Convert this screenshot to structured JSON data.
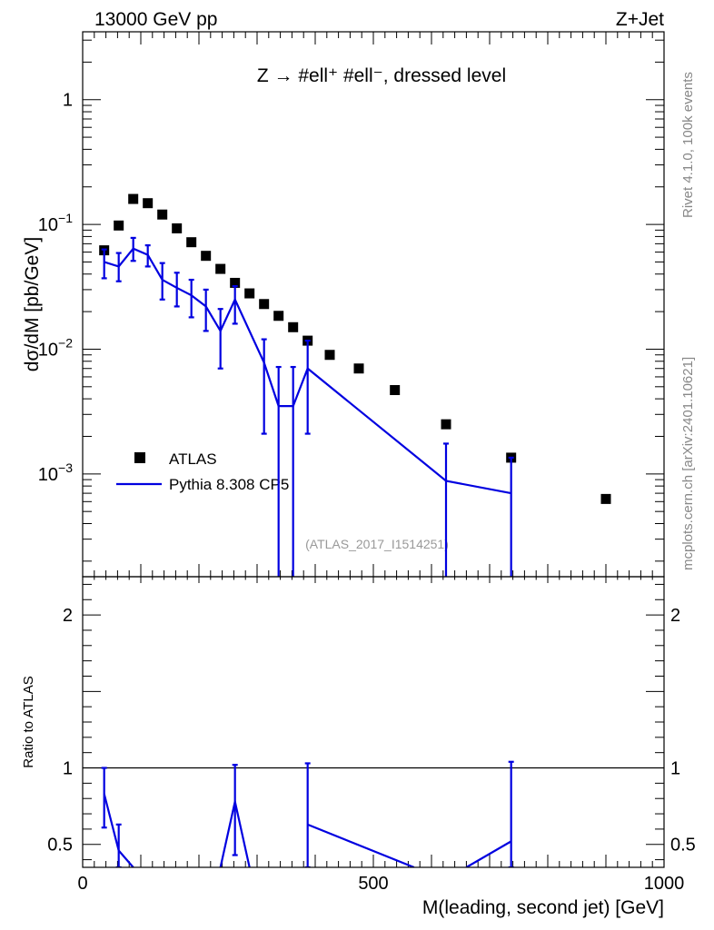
{
  "header": {
    "left_label": "13000 GeV pp",
    "right_label": "Z+Jet"
  },
  "side_labels": {
    "version": "Rivet 4.1.0,  100k events",
    "source": "mcplots.cern.ch [arXiv:2401.10621]"
  },
  "chart_data": {
    "type": "scatter",
    "title": "Z → #ell⁺ #ell⁻, dressed level",
    "analysis_id": "(ATLAS_2017_I1514251)",
    "xlabel": "M(leading, second jet) [GeV]",
    "ylabel": "dσ/dM [pb/GeV]",
    "ratio_ylabel": "Ratio to ATLAS",
    "xlim": [
      0,
      1000
    ],
    "ylim": [
      0.00015,
      3.5
    ],
    "yscale": "log",
    "ratio_ylim": [
      0.35,
      2.25
    ],
    "x_tick_labels": [
      "0",
      "500",
      "1000"
    ],
    "y_tick_labels": [
      {
        "value": 1,
        "mant": "1",
        "exp": ""
      },
      {
        "value": 0.1,
        "mant": "10",
        "exp": "−1"
      },
      {
        "value": 0.01,
        "mant": "10",
        "exp": "−2"
      },
      {
        "value": 0.001,
        "mant": "10",
        "exp": "−3"
      }
    ],
    "ratio_tick_labels": [
      {
        "value": 0.5,
        "label": "0.5"
      },
      {
        "value": 1,
        "label": "1"
      },
      {
        "value": 2,
        "label": "2"
      }
    ],
    "legend": {
      "position": "lower-left",
      "entries": [
        "ATLAS",
        "Pythia 8.308 CP5"
      ]
    },
    "series": [
      {
        "name": "ATLAS",
        "style": "markers",
        "color": "#000000",
        "x": [
          37,
          62,
          87,
          112,
          137,
          162,
          187,
          212,
          237,
          262,
          287,
          312,
          337,
          362,
          387,
          425,
          475,
          537,
          625,
          737,
          900
        ],
        "y": [
          0.062,
          0.098,
          0.16,
          0.148,
          0.12,
          0.093,
          0.072,
          0.056,
          0.044,
          0.034,
          0.028,
          0.023,
          0.0185,
          0.015,
          0.0117,
          0.009,
          0.007,
          0.0047,
          0.0025,
          0.00135,
          0.00063
        ]
      },
      {
        "name": "Pythia 8.308 CP5",
        "style": "line",
        "color": "#0000e0",
        "x": [
          37,
          62,
          87,
          112,
          137,
          162,
          187,
          212,
          237,
          262,
          312,
          337,
          362,
          387,
          625,
          737
        ],
        "y": [
          0.05,
          0.046,
          0.064,
          0.057,
          0.036,
          0.031,
          0.027,
          0.022,
          0.014,
          0.025,
          0.0078,
          0.0035,
          0.0035,
          0.007,
          0.00088,
          0.0007
        ],
        "yerr_low": [
          0.037,
          0.035,
          0.051,
          0.046,
          0.025,
          0.022,
          0.018,
          0.014,
          0.007,
          0.016,
          0.0021,
          0.0001,
          0.0001,
          0.0021,
          0.0001,
          0.0001
        ],
        "yerr_high": [
          0.063,
          0.059,
          0.078,
          0.068,
          0.049,
          0.041,
          0.036,
          0.03,
          0.021,
          0.032,
          0.012,
          0.0072,
          0.0072,
          0.0117,
          0.00175,
          0.00135
        ]
      }
    ],
    "ratio_series": {
      "name": "Pythia 8.308 CP5 / ATLAS",
      "color": "#0000e0",
      "x": [
        37,
        62,
        87,
        237,
        262,
        287,
        387,
        570,
        660,
        737
      ],
      "y": [
        0.83,
        0.46,
        0.35,
        0.35,
        0.78,
        0.35,
        0.63,
        0.35,
        0.35,
        0.52
      ],
      "errbars": [
        {
          "x": 37,
          "low": 0.61,
          "high": 1.0
        },
        {
          "x": 62,
          "low": 0.35,
          "high": 0.63
        },
        {
          "x": 262,
          "low": 0.43,
          "high": 1.02
        },
        {
          "x": 387,
          "low": 0.35,
          "high": 1.03
        },
        {
          "x": 737,
          "low": 0.35,
          "high": 1.04
        }
      ]
    }
  }
}
